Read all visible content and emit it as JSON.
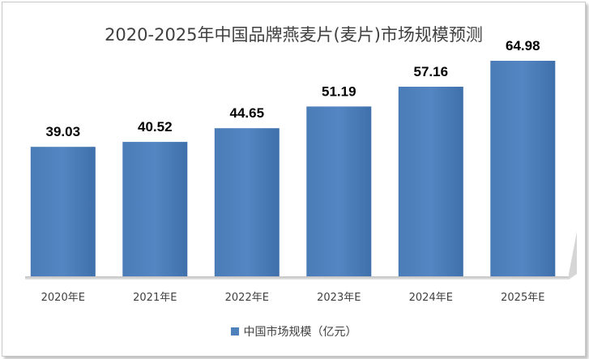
{
  "chart_data": {
    "type": "bar",
    "title": "2020-2025年中国品牌燕麦片(麦片)市场规模预测",
    "categories": [
      "2020年E",
      "2021年E",
      "2022年E",
      "2023年E",
      "2024年E",
      "2025年E"
    ],
    "series": [
      {
        "name": "中国市场规模（亿元）",
        "values": [
          39.03,
          40.52,
          44.65,
          51.19,
          57.16,
          64.98
        ]
      }
    ],
    "value_labels": [
      "39.03",
      "40.52",
      "44.65",
      "51.19",
      "57.16",
      "64.98"
    ],
    "xlabel": "",
    "ylabel": "",
    "ylim": [
      0,
      70
    ],
    "grid": false,
    "legend_position": "bottom",
    "colors": {
      "bar": "#4f81bd",
      "bar_dark": "#3a6aa3",
      "floor": "#d0d0d0",
      "label": "#000000",
      "axis_text": "#404040"
    }
  }
}
